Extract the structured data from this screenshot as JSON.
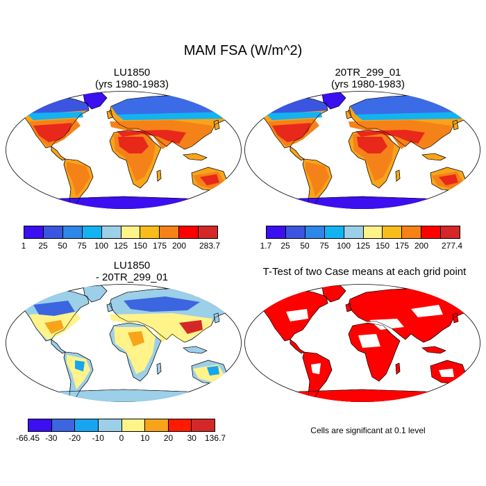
{
  "title": "MAM FSA (W/m^2)",
  "panels": [
    {
      "id": "lu1850",
      "title_line1": "LU1850",
      "title_line2": "(yrs 1980-1983)",
      "colorbar": {
        "colors": [
          "#3b0ff0",
          "#3c55e0",
          "#2e86e8",
          "#12b3f0",
          "#9ccfe8",
          "#fff38a",
          "#f8bd1c",
          "#f58218",
          "#ff0000",
          "#d42828"
        ],
        "labels": [
          "1",
          "25",
          "50",
          "75",
          "100",
          "125",
          "150",
          "175",
          "200",
          "283.7"
        ]
      }
    },
    {
      "id": "20tr",
      "title_line1": "20TR_299_01",
      "title_line2": "(yrs 1980-1983)",
      "colorbar": {
        "colors": [
          "#3b0ff0",
          "#3c55e0",
          "#2e86e8",
          "#12b3f0",
          "#9ccfe8",
          "#fff38a",
          "#f8bd1c",
          "#f58218",
          "#ff0000",
          "#d42828"
        ],
        "labels": [
          "1.7",
          "25",
          "50",
          "75",
          "100",
          "125",
          "150",
          "175",
          "200",
          "277.4"
        ]
      }
    },
    {
      "id": "diff",
      "title_line1": "LU1850",
      "title_line2": "- 20TR_299_01",
      "colorbar": {
        "colors": [
          "#3b0ff0",
          "#3c65e0",
          "#17a5f0",
          "#9ccfe8",
          "#fff38a",
          "#f8a41a",
          "#ff1a00",
          "#d42828"
        ],
        "labels": [
          "-66.45",
          "-30",
          "-20",
          "-10",
          "0",
          "10",
          "20",
          "30",
          "136.7"
        ]
      }
    },
    {
      "id": "ttest",
      "title_line1": "T-Test of two Case means at each grid point",
      "note": "Cells are significant at 0.1 level"
    }
  ],
  "map_colors": {
    "ocean": "#ffffff",
    "antarctica_abs": "#3b0ff0",
    "antarctica_diff": "#9ccfe8",
    "significant": "#ff0000",
    "coast": "#000000"
  }
}
